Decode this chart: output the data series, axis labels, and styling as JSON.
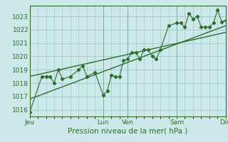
{
  "xlabel": "Pression niveau de la mer( hPa )",
  "background_color": "#cce8e8",
  "grid_color": "#99cccc",
  "line_color": "#2d6e2d",
  "ylim": [
    1015.5,
    1023.8
  ],
  "yticks": [
    1016,
    1017,
    1018,
    1019,
    1020,
    1021,
    1022,
    1023
  ],
  "x_day_labels": [
    "Jeu",
    "Lun",
    "Ven",
    "Sam",
    "Dim"
  ],
  "x_day_positions": [
    0,
    9,
    12,
    18,
    24
  ],
  "xlim": [
    0,
    24
  ],
  "line1_x": [
    0,
    1.5,
    2,
    2.5,
    3,
    3.5,
    4,
    5,
    6,
    6.5,
    7,
    8,
    9,
    9.5,
    10,
    10.5,
    11,
    11.5,
    12,
    12.5,
    13,
    13.5,
    14,
    14.5,
    15,
    15.5,
    16,
    17,
    18,
    18.5,
    19,
    19.5,
    20,
    20.5,
    21,
    21.5,
    22,
    22.5,
    23,
    23.5,
    24
  ],
  "line1_y": [
    1015.8,
    1018.5,
    1018.5,
    1018.5,
    1018.0,
    1019.0,
    1018.3,
    1018.5,
    1019.0,
    1019.3,
    1018.5,
    1018.8,
    1017.1,
    1017.4,
    1018.6,
    1018.5,
    1018.5,
    1019.7,
    1019.8,
    1020.3,
    1020.3,
    1019.8,
    1020.5,
    1020.5,
    1020.0,
    1019.8,
    1020.5,
    1022.3,
    1022.5,
    1022.5,
    1022.2,
    1023.2,
    1022.8,
    1023.0,
    1022.2,
    1022.2,
    1022.2,
    1022.5,
    1023.5,
    1022.6,
    1022.7
  ],
  "line2_x": [
    0,
    24
  ],
  "line2_y": [
    1016.8,
    1022.3
  ],
  "line3_x": [
    0,
    24
  ],
  "line3_y": [
    1018.5,
    1021.8
  ],
  "xlabel_fontsize": 7.5,
  "tick_fontsize": 6.5
}
